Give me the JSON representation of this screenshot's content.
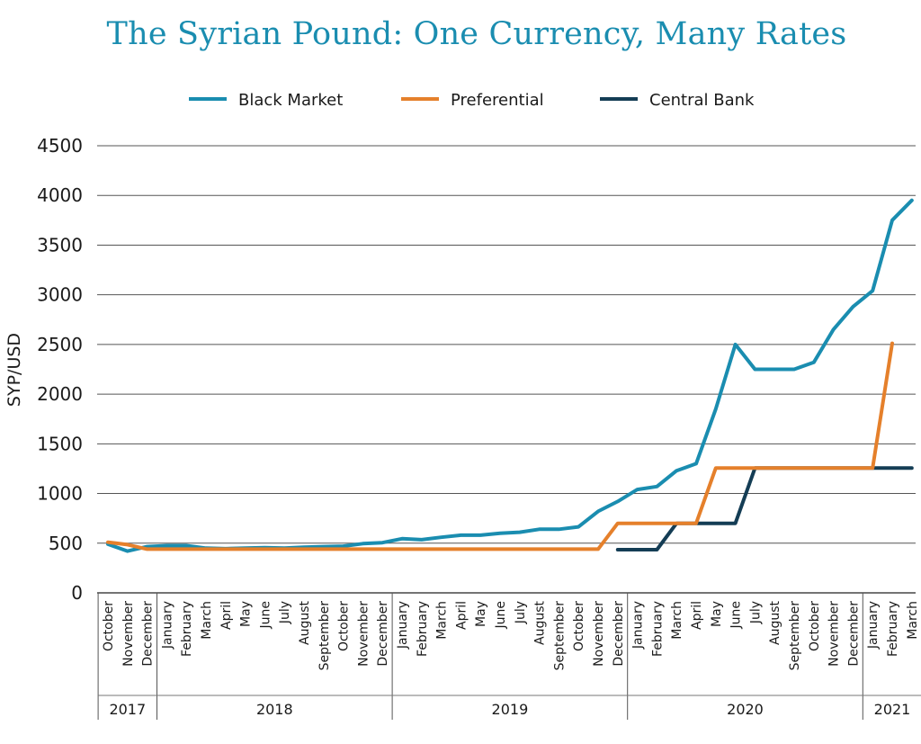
{
  "chart_data": {
    "type": "line",
    "title": "The Syrian Pound: One Currency, Many Rates",
    "ylabel": "SYP/USD",
    "xlabel": "",
    "ylim": [
      0,
      4500
    ],
    "yticks": [
      0,
      500,
      1000,
      1500,
      2000,
      2500,
      3000,
      3500,
      4000,
      4500
    ],
    "grid": true,
    "legend_position": "top",
    "x": [
      "October",
      "November",
      "December",
      "January",
      "February",
      "March",
      "April",
      "May",
      "June",
      "July",
      "August",
      "September",
      "October",
      "November",
      "December",
      "January",
      "February",
      "March",
      "April",
      "May",
      "June",
      "July",
      "August",
      "September",
      "October",
      "November",
      "December",
      "January",
      "February",
      "March",
      "April",
      "May",
      "June",
      "July",
      "August",
      "September",
      "October",
      "November",
      "December",
      "January",
      "February",
      "March"
    ],
    "year_groups": [
      {
        "label": "2017",
        "start": 0,
        "end": 2
      },
      {
        "label": "2018",
        "start": 3,
        "end": 14
      },
      {
        "label": "2019",
        "start": 15,
        "end": 26
      },
      {
        "label": "2020",
        "start": 27,
        "end": 38
      },
      {
        "label": "2021",
        "start": 39,
        "end": 41
      }
    ],
    "series": [
      {
        "name": "Black Market",
        "color": "#1a8db0",
        "values": [
          490,
          420,
          465,
          475,
          475,
          450,
          445,
          450,
          455,
          450,
          460,
          465,
          470,
          495,
          505,
          545,
          535,
          560,
          580,
          580,
          600,
          610,
          640,
          640,
          665,
          820,
          920,
          1040,
          1070,
          1230,
          1300,
          1850,
          2500,
          2250,
          2250,
          2250,
          2320,
          2650,
          2880,
          3040,
          3750,
          3950
        ]
      },
      {
        "name": "Preferential",
        "color": "#e5802b",
        "values": [
          510,
          485,
          440,
          440,
          440,
          440,
          440,
          440,
          440,
          440,
          440,
          440,
          440,
          440,
          440,
          440,
          440,
          440,
          440,
          440,
          440,
          440,
          440,
          440,
          440,
          440,
          700,
          700,
          700,
          700,
          700,
          1256,
          1256,
          1256,
          1256,
          1256,
          1256,
          1256,
          1256,
          1256,
          2512,
          null
        ]
      },
      {
        "name": "Central Bank",
        "color": "#143d55",
        "values": [
          null,
          null,
          null,
          null,
          null,
          null,
          null,
          null,
          null,
          null,
          null,
          null,
          null,
          null,
          null,
          null,
          null,
          null,
          null,
          null,
          null,
          null,
          null,
          null,
          null,
          null,
          435,
          435,
          435,
          700,
          700,
          700,
          700,
          1256,
          1256,
          1256,
          1256,
          1256,
          1256,
          1256,
          1256,
          1256
        ]
      }
    ]
  }
}
